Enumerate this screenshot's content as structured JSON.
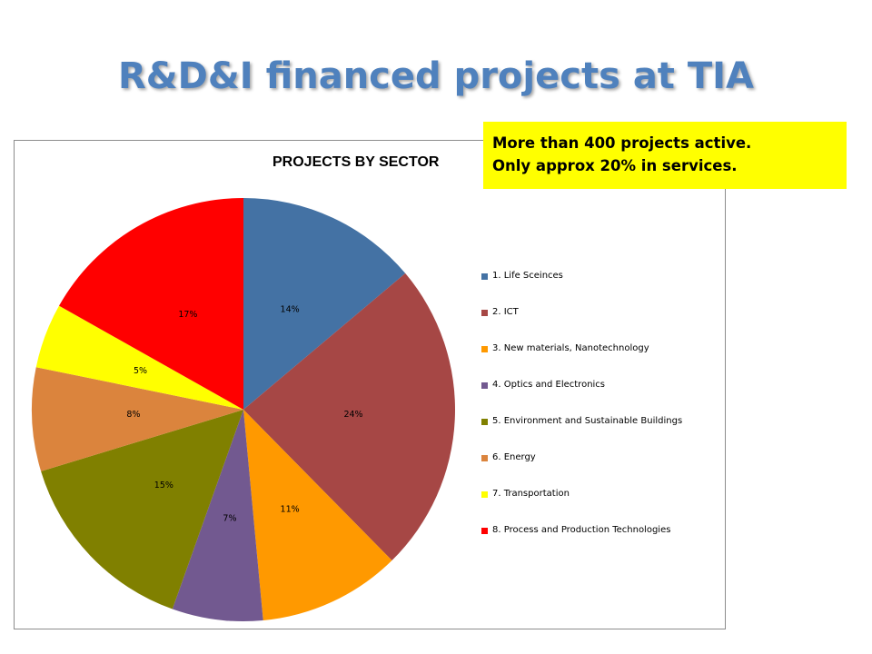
{
  "slide": {
    "title": "R&D&I financed projects at TIA"
  },
  "callout": {
    "line1": "More than 400 projects active.",
    "line2": "Only approx 20% in services.",
    "background": "#ffff00"
  },
  "chart_data": {
    "type": "pie",
    "title": "PROJECTS BY SECTOR",
    "legend_position": "right",
    "start_angle_deg": 0,
    "direction": "clockwise",
    "slices": [
      {
        "label": "1. Life Sceinces",
        "value": 14,
        "display": "14%",
        "color": "#4472a4"
      },
      {
        "label": "2. ICT",
        "value": 24,
        "display": "24%",
        "color": "#a64745"
      },
      {
        "label": "3. New materials, Nanotechnology",
        "value": 11,
        "display": "11%",
        "color": "#ff9900"
      },
      {
        "label": "4. Optics and Electronics",
        "value": 7,
        "display": "7%",
        "color": "#725990"
      },
      {
        "label": "5. Environment and Sustainable Buildings",
        "value": 15,
        "display": "15%",
        "color": "#808000"
      },
      {
        "label": "6. Energy",
        "value": 8,
        "display": "8%",
        "color": "#db843d"
      },
      {
        "label": "7. Transportation",
        "value": 5,
        "display": "5%",
        "color": "#ffff00"
      },
      {
        "label": "8. Process and Production Technologies",
        "value": 17,
        "display": "17%",
        "color": "#ff0000"
      }
    ]
  }
}
